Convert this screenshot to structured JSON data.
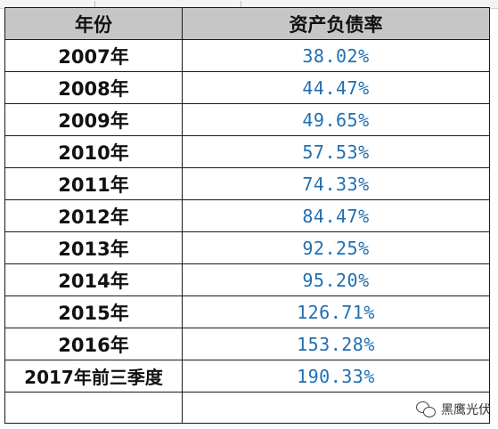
{
  "table": {
    "headers": [
      "年份",
      "资产负债率"
    ],
    "rows": [
      {
        "year": "2007年",
        "ratio": "38.02%"
      },
      {
        "year": "2008年",
        "ratio": "44.47%"
      },
      {
        "year": "2009年",
        "ratio": "49.65%"
      },
      {
        "year": "2010年",
        "ratio": "57.53%"
      },
      {
        "year": "2011年",
        "ratio": "74.33%"
      },
      {
        "year": "2012年",
        "ratio": "84.47%"
      },
      {
        "year": "2013年",
        "ratio": "92.25%"
      },
      {
        "year": "2014年",
        "ratio": "95.20%"
      },
      {
        "year": "2015年",
        "ratio": "126.71%"
      },
      {
        "year": "2016年",
        "ratio": "153.28%"
      },
      {
        "year": "2017年前三季度",
        "ratio": "190.33%"
      }
    ]
  },
  "watermark": {
    "text": "黑鹰光伏",
    "icon": "wechat-icon"
  },
  "colors": {
    "header_bg": "#c6c6c6",
    "value_text": "#1f6fb2",
    "grid": "#1a1a1a"
  }
}
